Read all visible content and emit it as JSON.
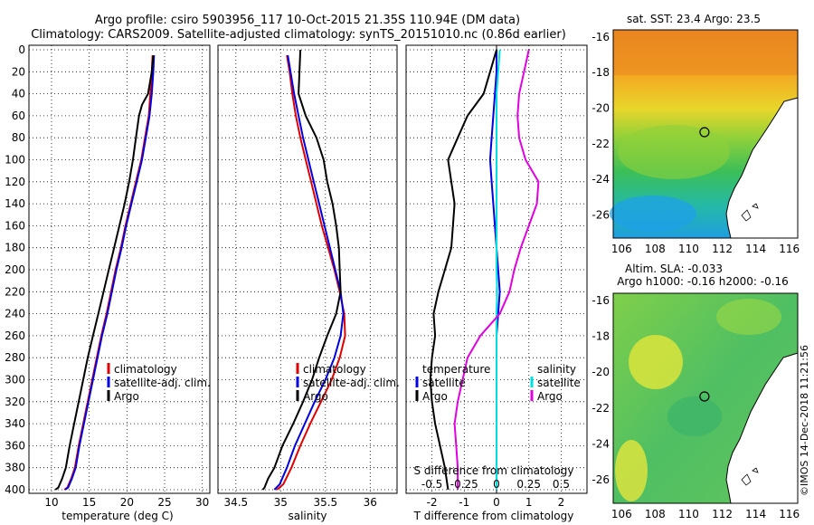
{
  "header": {
    "title_line1": "Argo profile: csiro 5903956_117 10-Oct-2015 21.35S 110.94E (DM data)",
    "title_line2": "Climatology: CARS2009. Satellite-adjusted climatology: synTS_20151010.nc (0.86d earlier)"
  },
  "colors": {
    "climatology": "#e00000",
    "satellite_adj": "#0000e0",
    "argo": "#000000",
    "sat_salinity": "#00e0e0",
    "argo_salinity_diff": "#e000e0",
    "ocean_plain": "#ffffff"
  },
  "chart_data": [
    {
      "id": "temperature",
      "type": "line",
      "xlabel": "temperature (deg C)",
      "ylabel": "",
      "xlim": [
        7,
        31
      ],
      "ylim": [
        400,
        0
      ],
      "xticks": [
        10,
        15,
        20,
        25,
        30
      ],
      "yticks": [
        0,
        20,
        40,
        60,
        80,
        100,
        120,
        140,
        160,
        180,
        200,
        220,
        240,
        260,
        280,
        300,
        320,
        340,
        360,
        380,
        400
      ],
      "legend": [
        "climatology",
        "satellite-adj. clim.",
        "Argo"
      ],
      "series": [
        {
          "name": "climatology",
          "color": "climatology",
          "x": [
            23.4,
            23.3,
            23.1,
            22.9,
            22.4,
            21.9,
            21.2,
            20.5,
            19.8,
            19.2,
            18.5,
            17.9,
            17.3,
            16.6,
            16.0,
            15.4,
            14.8,
            14.2,
            13.6,
            13.1,
            12.6,
            12.1,
            11.7
          ],
          "y": [
            5,
            20,
            40,
            60,
            80,
            100,
            120,
            140,
            160,
            180,
            200,
            220,
            240,
            260,
            280,
            300,
            320,
            340,
            360,
            380,
            390,
            398,
            400
          ]
        },
        {
          "name": "satellite-adj. clim.",
          "color": "satellite_adj",
          "x": [
            23.6,
            23.5,
            23.3,
            23.0,
            22.5,
            22.0,
            21.3,
            20.6,
            19.9,
            19.3,
            18.6,
            18.0,
            17.4,
            16.7,
            16.1,
            15.5,
            14.9,
            14.3,
            13.7,
            13.2,
            12.7,
            12.2,
            11.8
          ],
          "y": [
            5,
            20,
            40,
            60,
            80,
            100,
            120,
            140,
            160,
            180,
            200,
            220,
            240,
            260,
            280,
            300,
            320,
            340,
            360,
            380,
            390,
            398,
            400
          ]
        },
        {
          "name": "Argo",
          "color": "argo",
          "x": [
            23.5,
            23.3,
            22.8,
            22.0,
            21.6,
            21.2,
            20.8,
            20.3,
            19.7,
            19.0,
            18.3,
            17.6,
            16.9,
            16.2,
            15.5,
            14.8,
            14.2,
            13.6,
            13.0,
            12.4,
            11.9,
            11.4,
            10.9,
            10.5
          ],
          "y": [
            5,
            20,
            40,
            50,
            60,
            80,
            100,
            120,
            140,
            160,
            180,
            200,
            220,
            240,
            260,
            280,
            300,
            320,
            340,
            360,
            380,
            390,
            398,
            400
          ]
        }
      ]
    },
    {
      "id": "salinity",
      "type": "line",
      "xlabel": "salinity",
      "ylabel": "",
      "xlim": [
        34.3,
        36.3
      ],
      "ylim": [
        400,
        0
      ],
      "xticks": [
        34.5,
        35,
        35.5,
        36
      ],
      "xticklabels": [
        "34.5",
        "35",
        "35.5",
        "36"
      ],
      "legend": [
        "climatology",
        "satellite-adj. clim.",
        "Argo"
      ],
      "series": [
        {
          "name": "climatology",
          "color": "climatology",
          "x": [
            35.07,
            35.1,
            35.13,
            35.17,
            35.22,
            35.28,
            35.34,
            35.4,
            35.46,
            35.53,
            35.6,
            35.66,
            35.71,
            35.72,
            35.66,
            35.57,
            35.45,
            35.33,
            35.22,
            35.12,
            35.03,
            34.96
          ],
          "y": [
            5,
            20,
            40,
            60,
            80,
            100,
            120,
            140,
            160,
            180,
            200,
            220,
            240,
            260,
            280,
            300,
            320,
            340,
            360,
            380,
            395,
            400
          ]
        },
        {
          "name": "satellite-adj. clim.",
          "color": "satellite_adj",
          "x": [
            35.08,
            35.11,
            35.15,
            35.2,
            35.25,
            35.31,
            35.37,
            35.43,
            35.49,
            35.55,
            35.61,
            35.67,
            35.7,
            35.67,
            35.6,
            35.5,
            35.38,
            35.27,
            35.16,
            35.07,
            34.99,
            34.93
          ],
          "y": [
            5,
            20,
            40,
            60,
            80,
            100,
            120,
            140,
            160,
            180,
            200,
            220,
            240,
            260,
            280,
            300,
            320,
            340,
            360,
            380,
            395,
            400
          ]
        },
        {
          "name": "Argo",
          "color": "argo",
          "x": [
            35.22,
            35.21,
            35.2,
            35.28,
            35.4,
            35.48,
            35.52,
            35.58,
            35.62,
            35.65,
            35.66,
            35.67,
            35.62,
            35.52,
            35.43,
            35.35,
            35.25,
            35.14,
            35.02,
            34.93,
            34.86,
            34.82,
            34.8
          ],
          "y": [
            0,
            20,
            40,
            60,
            80,
            100,
            120,
            140,
            160,
            180,
            200,
            220,
            240,
            260,
            280,
            300,
            320,
            340,
            360,
            380,
            390,
            398,
            400
          ]
        }
      ]
    },
    {
      "id": "differences",
      "type": "line",
      "xlabel": "T difference from climatology",
      "xlabel_top": "S difference from climatology",
      "xlim": [
        -2.8,
        2.8
      ],
      "ylim": [
        400,
        0
      ],
      "xticks": [
        -2,
        -1,
        0,
        1,
        2
      ],
      "xticklabels": [
        "-2",
        "-1",
        "0",
        "1",
        "2"
      ],
      "xticks_top": [
        -0.5,
        -0.25,
        0,
        0.25,
        0.5
      ],
      "xticklabels_top": [
        "-0.5",
        "-0.25",
        "0",
        "0.25",
        "0.5"
      ],
      "legend_temperature_title": "temperature",
      "legend_salinity_title": "salinity",
      "legend_temperature": [
        "satellite",
        "Argo"
      ],
      "legend_salinity": [
        "satellite",
        "Argo"
      ],
      "series": [
        {
          "name": "T satellite",
          "color": "satellite_adj",
          "x": [
            0.0,
            0.0,
            -0.05,
            -0.1,
            -0.15,
            -0.2,
            -0.15,
            -0.1,
            -0.05,
            0.0,
            0.05,
            0.1,
            0.05,
            0.0,
            0.0,
            0.0,
            0.0,
            0.0,
            0.0,
            0.0,
            0.0
          ],
          "y": [
            0,
            20,
            40,
            60,
            80,
            100,
            120,
            140,
            160,
            180,
            200,
            220,
            240,
            260,
            280,
            300,
            320,
            340,
            360,
            380,
            400
          ]
        },
        {
          "name": "T Argo",
          "color": "argo",
          "x": [
            0.0,
            -0.2,
            -0.4,
            -0.9,
            -1.2,
            -1.5,
            -1.4,
            -1.3,
            -1.35,
            -1.4,
            -1.6,
            -1.8,
            -1.95,
            -1.9,
            -2.0,
            -2.05,
            -2.0,
            -1.9,
            -1.75,
            -1.6,
            -1.5
          ],
          "y": [
            0,
            20,
            40,
            60,
            80,
            100,
            120,
            140,
            160,
            180,
            200,
            220,
            240,
            260,
            280,
            300,
            320,
            340,
            360,
            380,
            400
          ]
        },
        {
          "name": "S satellite",
          "color": "sat_salinity",
          "x": [
            0.1,
            0.05,
            0.0,
            0.0,
            0.0,
            0.0,
            0.0,
            0.0,
            0.0,
            0.0,
            0.0,
            0.02,
            0.0,
            0.0,
            0.0,
            0.0,
            0.0,
            0.0,
            0.0,
            0.0,
            0.0
          ],
          "y": [
            0,
            20,
            40,
            60,
            80,
            100,
            120,
            140,
            160,
            180,
            200,
            220,
            240,
            260,
            280,
            300,
            320,
            340,
            360,
            380,
            400
          ]
        },
        {
          "name": "S Argo",
          "color": "argo_salinity_diff",
          "x": [
            1.0,
            0.85,
            0.7,
            0.65,
            0.7,
            0.9,
            1.3,
            1.25,
            1.0,
            0.75,
            0.55,
            0.4,
            0.1,
            -0.5,
            -0.9,
            -1.05,
            -1.2,
            -1.3,
            -1.25,
            -1.2,
            -1.2
          ],
          "y": [
            0,
            20,
            40,
            60,
            80,
            100,
            120,
            140,
            160,
            180,
            200,
            220,
            240,
            260,
            280,
            300,
            320,
            340,
            360,
            380,
            400
          ]
        }
      ]
    },
    {
      "id": "sst_map",
      "type": "heatmap",
      "title": "sat. SST: 23.4 Argo: 23.5",
      "xlim": [
        105.5,
        116.5
      ],
      "ylim": [
        -27.3,
        -15.6
      ],
      "xticks": [
        106,
        108,
        110,
        112,
        114,
        116
      ],
      "yticks": [
        -16,
        -18,
        -20,
        -22,
        -24,
        -26
      ],
      "marker": {
        "lon": 110.94,
        "lat": -21.35
      }
    },
    {
      "id": "sla_map",
      "type": "heatmap",
      "title": "Altim. SLA: -0.033",
      "subtitle": "Argo h1000: -0.16 h2000: -0.16",
      "xlim": [
        105.5,
        116.5
      ],
      "ylim": [
        -27.3,
        -15.6
      ],
      "xticks": [
        106,
        108,
        110,
        112,
        114,
        116
      ],
      "yticks": [
        -16,
        -18,
        -20,
        -22,
        -24,
        -26
      ],
      "marker": {
        "lon": 110.94,
        "lat": -21.35
      }
    }
  ],
  "footer": {
    "stamp": "©IMOS 14-Dec-2018 11:21:56"
  }
}
